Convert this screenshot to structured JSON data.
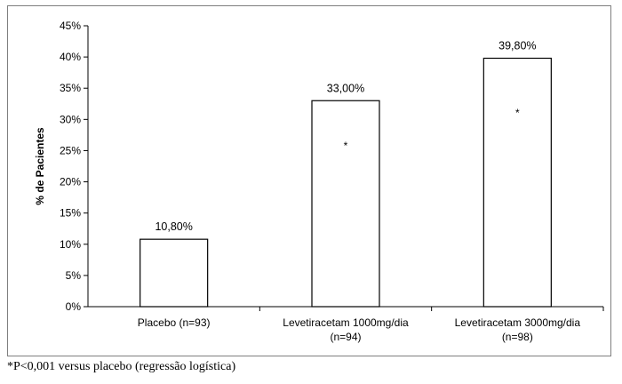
{
  "chart_data": {
    "type": "bar",
    "categories": [
      [
        "Placebo (n=93)"
      ],
      [
        "Levetiracetam 1000mg/dia",
        "(n=94)"
      ],
      [
        "Levetiracetam 3000mg/dia",
        "(n=98)"
      ]
    ],
    "values": [
      10.8,
      33.0,
      39.8
    ],
    "data_labels": [
      "10,80%",
      "33,00%",
      "39,80%"
    ],
    "significance_marks": [
      "",
      "*",
      "*"
    ],
    "ylabel": "% de Pacientes",
    "ylim": [
      0,
      45
    ],
    "yticks": [
      0,
      5,
      10,
      15,
      20,
      25,
      30,
      35,
      40,
      45
    ],
    "ytick_labels": [
      "0%",
      "5%",
      "10%",
      "15%",
      "20%",
      "25%",
      "30%",
      "35%",
      "40%",
      "45%"
    ],
    "grid": false,
    "legend": "none",
    "bar_fill": "#ffffff",
    "bar_stroke": "#000000"
  },
  "footnote": "*P<0,001 versus placebo (regressão logística)"
}
